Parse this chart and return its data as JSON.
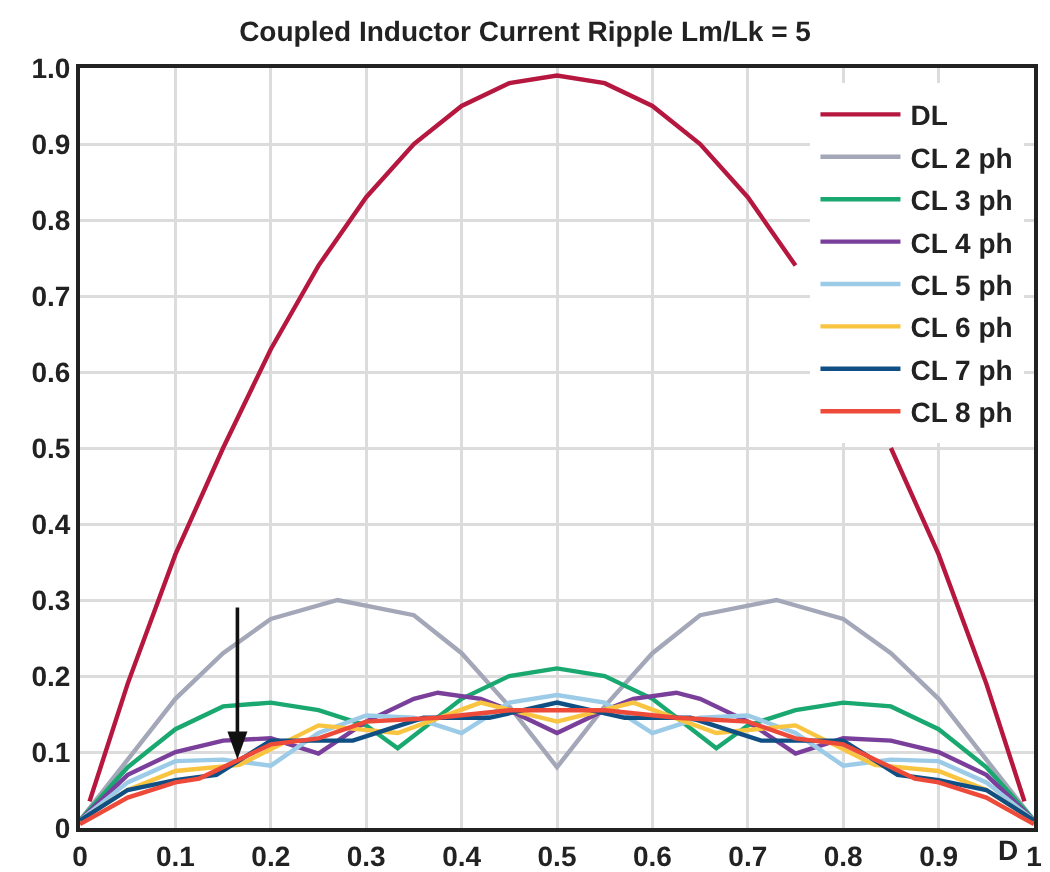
{
  "chart_data": {
    "type": "line",
    "title": "Coupled Inductor Current Ripple Lm/Lk = 5",
    "xlabel": "D",
    "xlim": [
      0,
      1
    ],
    "ylim": [
      0,
      1
    ],
    "xticks": [
      0,
      0.1,
      0.2,
      0.3,
      0.4,
      0.5,
      0.6,
      0.7,
      0.8,
      0.9,
      1
    ],
    "yticks": [
      0,
      0.1,
      0.2,
      0.3,
      0.4,
      0.5,
      0.6,
      0.7,
      0.8,
      0.9,
      {
        "value": 1,
        "label": "1.0"
      }
    ],
    "grid": true,
    "legend": "top right",
    "marker": "none",
    "line_style": "solid",
    "series": [
      {
        "name": "DL",
        "color": "#b5173f",
        "x": [
          0.01,
          0.05,
          0.1,
          0.15,
          0.2,
          0.25,
          0.3,
          0.35,
          0.4,
          0.45,
          0.5,
          0.55,
          0.6,
          0.65,
          0.7,
          0.75,
          0.8,
          0.85,
          0.9,
          0.95,
          0.99
        ],
        "values": [
          0.035,
          0.19,
          0.36,
          0.5,
          0.63,
          0.74,
          0.83,
          0.9,
          0.95,
          0.98,
          0.99,
          0.98,
          0.95,
          0.9,
          0.83,
          0.74,
          null,
          0.5,
          0.36,
          0.19,
          0.035
        ]
      },
      {
        "name": "CL 2 ph",
        "color": "#a3a7b8",
        "x": [
          0,
          0.05,
          0.1,
          0.15,
          0.2,
          0.27,
          0.35,
          0.4,
          0.45,
          0.5,
          0.55,
          0.6,
          0.65,
          0.73,
          0.8,
          0.85,
          0.9,
          0.95,
          1
        ],
        "values": [
          0.01,
          0.09,
          0.17,
          0.23,
          0.275,
          0.3,
          0.28,
          0.23,
          0.16,
          0.08,
          0.16,
          0.23,
          0.28,
          0.3,
          0.275,
          0.23,
          0.17,
          0.09,
          0.01
        ]
      },
      {
        "name": "CL 3 ph",
        "color": "#19a870",
        "x": [
          0,
          0.05,
          0.1,
          0.15,
          0.2,
          0.25,
          0.3,
          0.333,
          0.4,
          0.45,
          0.5,
          0.55,
          0.6,
          0.667,
          0.7,
          0.75,
          0.8,
          0.85,
          0.9,
          0.95,
          1
        ],
        "values": [
          0.01,
          0.08,
          0.13,
          0.16,
          0.165,
          0.155,
          0.135,
          0.105,
          0.17,
          0.2,
          0.21,
          0.2,
          0.17,
          0.105,
          0.135,
          0.155,
          0.165,
          0.16,
          0.13,
          0.08,
          0.01
        ]
      },
      {
        "name": "CL 4 ph",
        "color": "#7a3f9a",
        "x": [
          0,
          0.05,
          0.1,
          0.15,
          0.2,
          0.25,
          0.3,
          0.35,
          0.375,
          0.42,
          0.45,
          0.5,
          0.55,
          0.58,
          0.625,
          0.65,
          0.7,
          0.75,
          0.8,
          0.85,
          0.9,
          0.95,
          1
        ],
        "values": [
          0.01,
          0.07,
          0.1,
          0.115,
          0.118,
          0.098,
          0.14,
          0.17,
          0.178,
          0.17,
          0.155,
          0.125,
          0.155,
          0.17,
          0.178,
          0.17,
          0.14,
          0.098,
          0.118,
          0.115,
          0.1,
          0.07,
          0.01
        ]
      },
      {
        "name": "CL 5 ph",
        "color": "#9ccbe8",
        "x": [
          0,
          0.05,
          0.1,
          0.15,
          0.2,
          0.25,
          0.3,
          0.35,
          0.4,
          0.45,
          0.5,
          0.55,
          0.6,
          0.65,
          0.7,
          0.75,
          0.8,
          0.85,
          0.9,
          0.95,
          1
        ],
        "values": [
          0.01,
          0.06,
          0.088,
          0.09,
          0.082,
          0.125,
          0.148,
          0.145,
          0.125,
          0.165,
          0.175,
          0.165,
          0.125,
          0.145,
          0.148,
          0.125,
          0.082,
          0.09,
          0.088,
          0.06,
          0.01
        ]
      },
      {
        "name": "CL 6 ph",
        "color": "#f9c440",
        "x": [
          0,
          0.05,
          0.1,
          0.167,
          0.25,
          0.333,
          0.42,
          0.5,
          0.58,
          0.667,
          0.75,
          0.833,
          0.9,
          0.95,
          1
        ],
        "values": [
          0.01,
          0.05,
          0.075,
          0.083,
          0.135,
          0.125,
          0.165,
          0.14,
          0.165,
          0.125,
          0.135,
          0.083,
          0.075,
          0.05,
          0.01
        ]
      },
      {
        "name": "CL 7 ph",
        "color": "#0f4f84",
        "x": [
          0,
          0.05,
          0.1,
          0.143,
          0.2,
          0.286,
          0.36,
          0.429,
          0.5,
          0.571,
          0.64,
          0.714,
          0.8,
          0.857,
          0.9,
          0.95,
          1
        ],
        "values": [
          0.01,
          0.05,
          0.063,
          0.07,
          0.115,
          0.115,
          0.145,
          0.145,
          0.165,
          0.145,
          0.145,
          0.115,
          0.115,
          0.07,
          0.063,
          0.05,
          0.01
        ]
      },
      {
        "name": "CL 8 ph",
        "color": "#ee4a3a",
        "x": [
          0,
          0.05,
          0.1,
          0.125,
          0.2,
          0.25,
          0.3,
          0.375,
          0.45,
          0.5,
          0.55,
          0.625,
          0.7,
          0.75,
          0.8,
          0.875,
          0.9,
          0.95,
          1
        ],
        "values": [
          0.005,
          0.04,
          0.06,
          0.065,
          0.11,
          0.118,
          0.14,
          0.145,
          0.155,
          0.155,
          0.155,
          0.145,
          0.14,
          0.118,
          0.11,
          0.065,
          0.06,
          0.04,
          0.005
        ]
      }
    ]
  }
}
